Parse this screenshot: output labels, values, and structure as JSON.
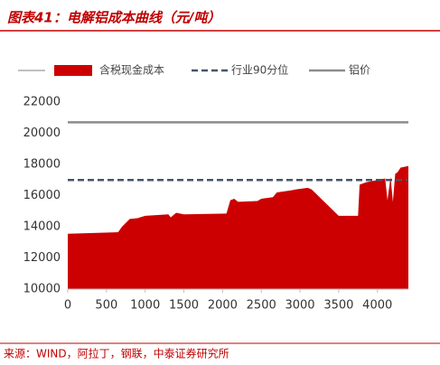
{
  "chart_data": {
    "type": "area",
    "title": "图表41：电解铝成本曲线（元/吨）",
    "source": "来源：WIND，阿拉丁，钢联，中泰证券研究所",
    "xlim": [
      0,
      4400
    ],
    "ylim": [
      10000,
      22000
    ],
    "xticks": [
      0,
      500,
      1000,
      1500,
      2000,
      2500,
      3000,
      3500,
      4000
    ],
    "yticks": [
      10000,
      12000,
      14000,
      16000,
      18000,
      20000,
      22000
    ],
    "series": [
      {
        "name": "含税现金成本",
        "color": "#cc0000",
        "kind": "area",
        "x": [
          0,
          650,
          700,
          800,
          900,
          1000,
          1300,
          1330,
          1400,
          1500,
          2050,
          2100,
          2150,
          2200,
          2450,
          2500,
          2650,
          2700,
          2900,
          2950,
          3100,
          3150,
          3500,
          3750,
          3770,
          3850,
          4100,
          4130,
          4170,
          4200,
          4230,
          4260,
          4300,
          4400
        ],
        "values": [
          13550,
          13650,
          14000,
          14500,
          14550,
          14700,
          14800,
          14600,
          14900,
          14800,
          14850,
          15700,
          15800,
          15600,
          15650,
          15800,
          15900,
          16200,
          16350,
          16400,
          16500,
          16400,
          14700,
          14700,
          16700,
          16850,
          17100,
          15700,
          17200,
          15600,
          17400,
          17500,
          17800,
          17900
        ]
      },
      {
        "name": "行业90分位",
        "color": "#44546a",
        "kind": "dashed",
        "x": [
          0,
          4400
        ],
        "values": [
          17000,
          17000
        ]
      },
      {
        "name": "铝价",
        "color": "#8c8c8c",
        "kind": "line",
        "x": [
          0,
          4400
        ],
        "values": [
          20700,
          20700
        ]
      }
    ]
  }
}
